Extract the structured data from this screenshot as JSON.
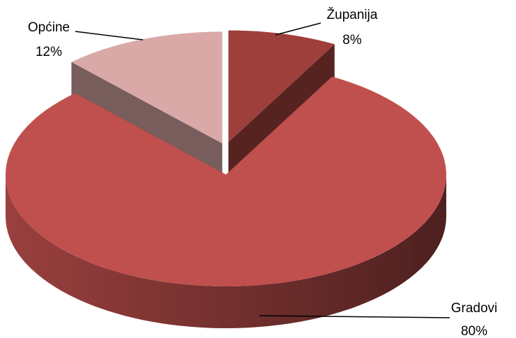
{
  "chart_data": {
    "type": "pie",
    "categories": [
      "Županija",
      "Gradovi",
      "Općine"
    ],
    "values": [
      8,
      80,
      12
    ],
    "value_labels": [
      "8%",
      "80%",
      "12%"
    ],
    "colors": [
      "#9e3f3c",
      "#c0504d",
      "#d9a9a8"
    ]
  }
}
